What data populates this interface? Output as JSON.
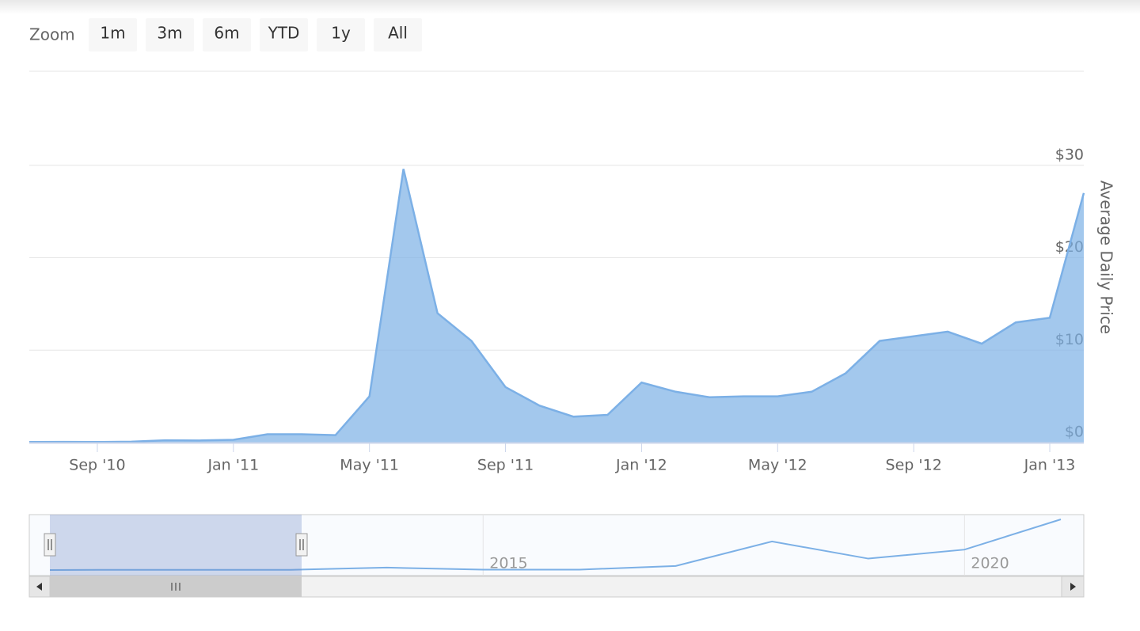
{
  "range_selector": {
    "label": "Zoom",
    "buttons": [
      "1m",
      "3m",
      "6m",
      "YTD",
      "1y",
      "All"
    ]
  },
  "chart_data": [
    {
      "type": "area",
      "y_title": "Average Daily Price",
      "color": "#7cb0e6",
      "x": [
        "2010-07",
        "2010-08",
        "2010-09",
        "2010-10",
        "2010-11",
        "2010-12",
        "2011-01",
        "2011-02",
        "2011-03",
        "2011-04",
        "2011-05",
        "2011-06",
        "2011-07",
        "2011-08",
        "2011-09",
        "2011-10",
        "2011-11",
        "2011-12",
        "2012-01",
        "2012-02",
        "2012-03",
        "2012-04",
        "2012-05",
        "2012-06",
        "2012-07",
        "2012-08",
        "2012-09",
        "2012-10",
        "2012-11",
        "2012-12",
        "2013-01",
        "2013-02"
      ],
      "values": [
        0.06,
        0.07,
        0.06,
        0.1,
        0.25,
        0.23,
        0.3,
        0.9,
        0.9,
        0.8,
        5,
        29.6,
        14,
        11,
        6,
        4,
        2.8,
        3,
        6.5,
        5.5,
        4.9,
        5,
        5,
        5.5,
        7.5,
        11,
        11.5,
        12,
        10.7,
        13,
        13.5,
        27
      ],
      "xlim": [
        "2010-07",
        "2013-02"
      ],
      "xticks": [
        {
          "value": "2010-09",
          "label": "Sep '10"
        },
        {
          "value": "2011-01",
          "label": "Jan '11"
        },
        {
          "value": "2011-05",
          "label": "May '11"
        },
        {
          "value": "2011-09",
          "label": "Sep '11"
        },
        {
          "value": "2012-01",
          "label": "Jan '12"
        },
        {
          "value": "2012-05",
          "label": "May '12"
        },
        {
          "value": "2012-09",
          "label": "Sep '12"
        },
        {
          "value": "2013-01",
          "label": "Jan '13"
        }
      ],
      "ylim": [
        0,
        40
      ],
      "yticks": [
        {
          "value": 0,
          "label": "$0"
        },
        {
          "value": 10,
          "label": "$10"
        },
        {
          "value": 20,
          "label": "$20"
        },
        {
          "value": 30,
          "label": "$30"
        }
      ],
      "grid": true
    },
    {
      "type": "line",
      "color": "#7cb0e6",
      "x": [
        2010.5,
        2011,
        2012,
        2013,
        2014,
        2015,
        2016,
        2017,
        2018,
        2019,
        2020,
        2021
      ],
      "values": [
        0,
        0.2,
        0.2,
        0.3,
        3,
        0.5,
        0.5,
        5,
        35,
        14,
        25,
        62
      ],
      "xlim": [
        2010.5,
        2021
      ],
      "xticks": [
        2015,
        2020
      ]
    }
  ]
}
